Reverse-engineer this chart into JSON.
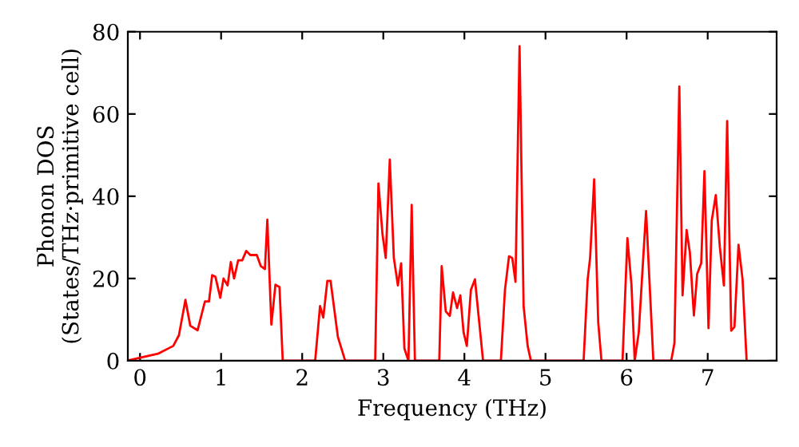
{
  "chart_data": {
    "type": "line",
    "xlabel": "Frequency (THz)",
    "ylabel": "Phonon DOS\n(States/THz·primitive cell)",
    "x": [
      -0.14,
      0.22,
      0.41,
      0.48,
      0.56,
      0.62,
      0.71,
      0.8,
      0.85,
      0.89,
      0.93,
      0.99,
      1.03,
      1.08,
      1.12,
      1.16,
      1.21,
      1.26,
      1.31,
      1.36,
      1.44,
      1.49,
      1.54,
      1.57,
      1.62,
      1.67,
      1.72,
      1.76,
      2.16,
      2.22,
      2.26,
      2.31,
      2.35,
      2.44,
      2.53,
      2.9,
      2.94,
      2.99,
      3.03,
      3.08,
      3.13,
      3.18,
      3.22,
      3.26,
      3.31,
      3.35,
      3.39,
      3.69,
      3.72,
      3.77,
      3.82,
      3.86,
      3.91,
      3.95,
      3.99,
      4.03,
      4.08,
      4.13,
      4.23,
      4.45,
      4.5,
      4.55,
      4.59,
      4.63,
      4.68,
      4.73,
      4.78,
      4.82,
      5.47,
      5.52,
      5.55,
      5.6,
      5.65,
      5.69,
      5.95,
      6.01,
      6.06,
      6.1,
      6.15,
      6.24,
      6.33,
      6.55,
      6.59,
      6.65,
      6.69,
      6.74,
      6.78,
      6.83,
      6.87,
      6.92,
      6.96,
      7.01,
      7.05,
      7.1,
      7.15,
      7.2,
      7.24,
      7.29,
      7.33,
      7.38,
      7.43,
      7.48
    ],
    "series": [
      {
        "color": "#ff0000",
        "values": [
          0.1,
          1.7,
          3.6,
          6.2,
          14.8,
          8.5,
          7.4,
          14.4,
          14.4,
          20.8,
          20.4,
          15.3,
          20,
          18.3,
          24,
          20,
          24.4,
          24.4,
          26.7,
          25.7,
          25.7,
          23,
          22.3,
          34.3,
          8.8,
          18.5,
          17.9,
          0,
          0,
          13.3,
          10.5,
          19.4,
          19.4,
          5.8,
          0,
          0,
          43.1,
          30.8,
          25,
          48.9,
          25,
          18.3,
          23.7,
          3,
          0,
          37.9,
          0,
          0,
          23,
          12,
          10.9,
          16.6,
          12.8,
          15.9,
          6.9,
          3.6,
          17.2,
          19.8,
          0,
          0,
          17.2,
          25.4,
          25,
          19.2,
          76.5,
          13.3,
          3.6,
          0,
          0,
          19.8,
          25,
          44.1,
          9.4,
          0,
          0,
          29.8,
          18.5,
          0,
          6.9,
          36.4,
          0,
          0,
          4.3,
          66.7,
          15.9,
          31.8,
          26.3,
          11,
          21.1,
          23.7,
          46.1,
          7.9,
          34.1,
          40.3,
          27.6,
          18.3,
          58.3,
          7.3,
          8.2,
          28.2,
          19.8,
          0
        ]
      }
    ],
    "xlim": [
      -0.15,
      7.85
    ],
    "ylim": [
      0,
      80
    ],
    "xticks": [
      0,
      1,
      2,
      3,
      4,
      5,
      6,
      7
    ],
    "yticks": [
      0,
      20,
      40,
      60,
      80
    ],
    "grid": false,
    "legend": false,
    "marker": "none",
    "line_style": "solid"
  }
}
